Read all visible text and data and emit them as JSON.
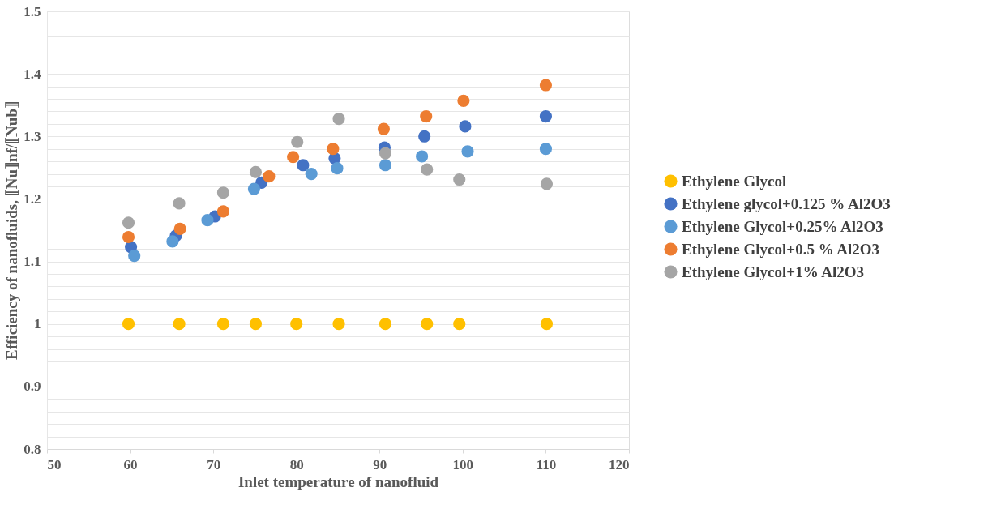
{
  "chart_data": {
    "type": "scatter",
    "xlabel": "Inlet temperature of nanofluid",
    "ylabel": "Efficiency of nanofluids, ⟦Nu⟧nf/⟦Nub⟧",
    "xlim": [
      50,
      120
    ],
    "xticks": [
      50,
      60,
      70,
      80,
      90,
      100,
      110,
      120
    ],
    "ylim": [
      0.8,
      1.5
    ],
    "yticks": [
      0.8,
      {
        "value": 0.82,
        "label": null
      },
      {
        "value": 0.84,
        "label": null
      },
      {
        "value": 0.86,
        "label": null
      },
      {
        "value": 0.88,
        "label": null
      },
      0.9,
      {
        "value": 0.92,
        "label": null
      },
      {
        "value": 0.94,
        "label": null
      },
      {
        "value": 0.96,
        "label": null
      },
      {
        "value": 0.98,
        "label": null
      },
      1,
      {
        "value": 1.02,
        "label": null
      },
      {
        "value": 1.04,
        "label": null
      },
      {
        "value": 1.06,
        "label": null
      },
      {
        "value": 1.08,
        "label": null
      },
      1.1,
      {
        "value": 1.12,
        "label": null
      },
      {
        "value": 1.14,
        "label": null
      },
      {
        "value": 1.16,
        "label": null
      },
      {
        "value": 1.18,
        "label": null
      },
      1.2,
      {
        "value": 1.22,
        "label": null
      },
      {
        "value": 1.24,
        "label": null
      },
      {
        "value": 1.26,
        "label": null
      },
      {
        "value": 1.28,
        "label": null
      },
      1.3,
      {
        "value": 1.32,
        "label": null
      },
      {
        "value": 1.34,
        "label": null
      },
      {
        "value": 1.36,
        "label": null
      },
      {
        "value": 1.38,
        "label": null
      },
      1.4,
      {
        "value": 1.42,
        "label": null
      },
      {
        "value": 1.44,
        "label": null
      },
      {
        "value": 1.46,
        "label": null
      },
      {
        "value": 1.48,
        "label": null
      },
      1.5
    ],
    "grid": "y",
    "legend": "right",
    "marker": "circle",
    "series": [
      {
        "name": "Ethylene Glycol",
        "color": "#ffc000",
        "x": [
          59.8,
          65.9,
          71.2,
          75.1,
          80.0,
          85.1,
          90.7,
          95.7,
          99.6,
          110.1
        ],
        "values": [
          1,
          1,
          1,
          1,
          1,
          1,
          1,
          1,
          1,
          1
        ]
      },
      {
        "name": "Ethylene glycol+0.125 % Al2O3",
        "color": "#4472c4",
        "x": [
          60.1,
          65.5,
          70.2,
          75.8,
          80.8,
          84.6,
          90.6,
          95.4,
          100.3,
          110.0
        ],
        "values": [
          1.123,
          1.141,
          1.172,
          1.226,
          1.254,
          1.265,
          1.282,
          1.3,
          1.316,
          1.332
        ]
      },
      {
        "name": "Ethylene Glycol+0.25% Al2O3",
        "color": "#5b9bd5",
        "x": [
          60.5,
          65.1,
          69.3,
          74.9,
          81.8,
          84.9,
          90.7,
          95.1,
          100.6,
          110.0
        ],
        "values": [
          1.109,
          1.132,
          1.166,
          1.216,
          1.24,
          1.249,
          1.254,
          1.268,
          1.276,
          1.28
        ]
      },
      {
        "name": "Ethylene Glycol+0.5 % Al2O3",
        "color": "#ed7d31",
        "x": [
          59.8,
          66.0,
          71.2,
          76.7,
          79.6,
          84.4,
          90.5,
          95.6,
          100.1,
          110.0
        ],
        "values": [
          1.139,
          1.152,
          1.18,
          1.236,
          1.267,
          1.28,
          1.312,
          1.332,
          1.357,
          1.382
        ]
      },
      {
        "name": "Ethylene Glycol+1% Al2O3",
        "color": "#a5a5a5",
        "x": [
          59.8,
          65.9,
          71.2,
          75.1,
          80.1,
          85.1,
          90.7,
          95.7,
          99.6,
          110.1
        ],
        "values": [
          1.162,
          1.193,
          1.21,
          1.243,
          1.291,
          1.328,
          1.273,
          1.247,
          1.231,
          1.224
        ]
      }
    ]
  }
}
